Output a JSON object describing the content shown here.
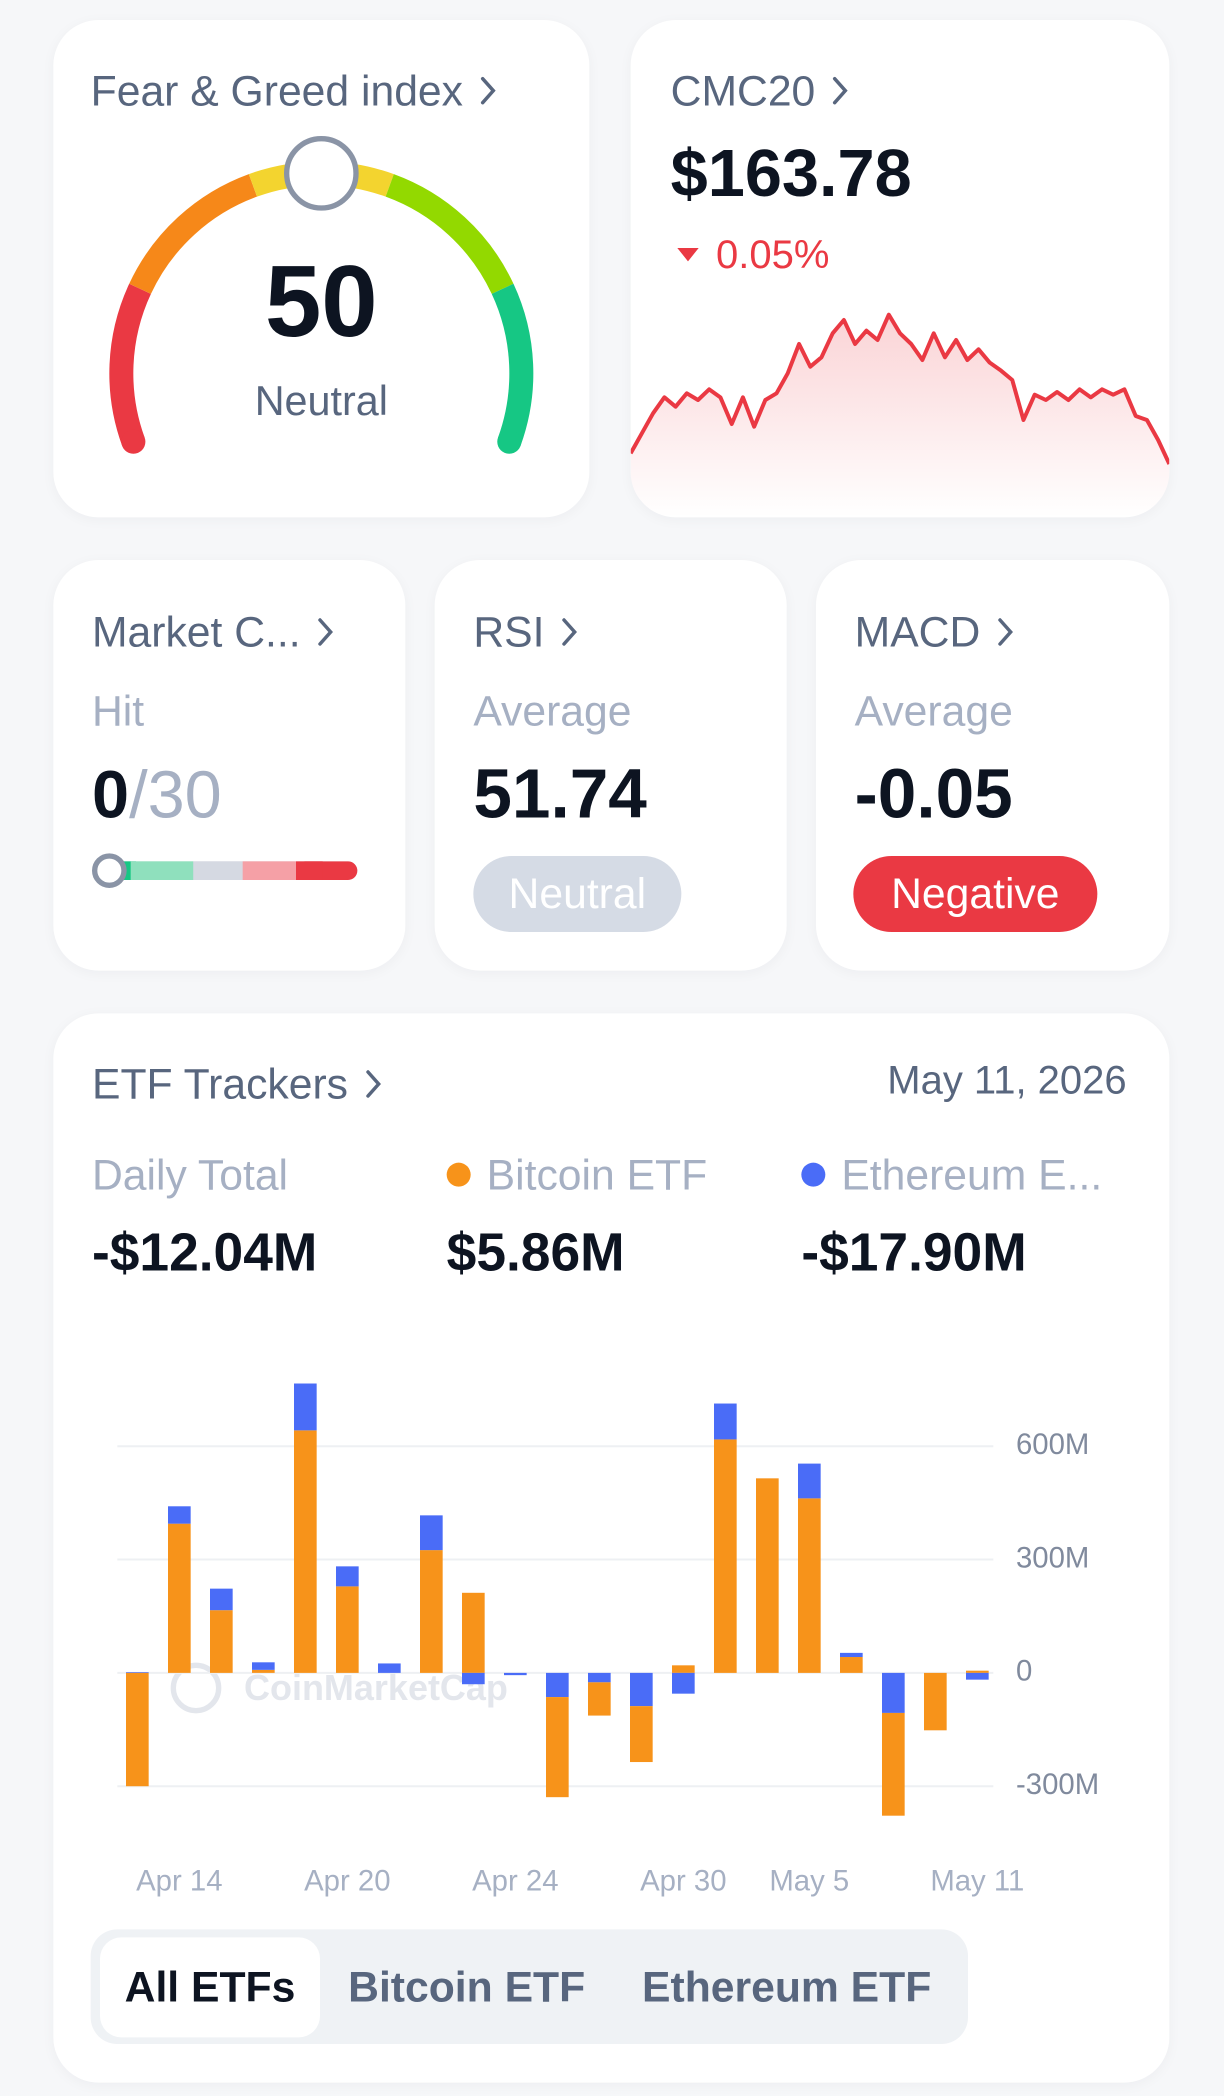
{
  "fear_greed": {
    "title": "Fear & Greed index",
    "value": 50,
    "label": "Neutral"
  },
  "cmc20": {
    "title": "CMC20",
    "price": "$163.78",
    "change": "0.05%"
  },
  "market_cycle": {
    "title": "Market C...",
    "subtitle": "Hit",
    "hit": 0,
    "total": "/30"
  },
  "rsi": {
    "title": "RSI",
    "subtitle": "Average",
    "value": 51.74,
    "status": "Neutral"
  },
  "macd": {
    "title": "MACD",
    "subtitle": "Average",
    "value": -0.05,
    "status": "Negative"
  },
  "etf": {
    "title": "ETF Trackers",
    "date": "May 11, 2026",
    "daily_total_label": "Daily Total",
    "daily_total": "-$12.04M",
    "bitcoin_total": "$5.86M",
    "ethereum_total": "-$17.90M",
    "watermark": "CoinMarketCap",
    "tabs": [
      "All ETFs",
      "Bitcoin ETF",
      "Ethereum ETF"
    ]
  },
  "chart_data": [
    {
      "type": "line",
      "color": "#ea3943",
      "values": [
        20,
        35,
        50,
        62,
        55,
        65,
        60,
        68,
        62,
        42,
        62,
        40,
        60,
        65,
        80,
        102,
        85,
        92,
        110,
        120,
        102,
        112,
        105,
        124,
        110,
        102,
        90,
        110,
        92,
        105,
        90,
        98,
        88,
        82,
        75,
        45,
        64,
        60,
        66,
        60,
        68,
        62,
        68,
        64,
        68,
        48,
        45,
        30,
        12
      ]
    },
    {
      "type": "bar",
      "stacked": true,
      "categories": [
        null,
        "Apr 14",
        null,
        null,
        null,
        "Apr 20",
        null,
        null,
        null,
        "Apr 24",
        null,
        null,
        null,
        "Apr 30",
        null,
        null,
        "May 5",
        null,
        null,
        null,
        "May 11"
      ],
      "series": [
        {
          "name": "Bitcoin ETF",
          "color": "#f7931a",
          "values": [
            -300,
            395,
            166,
            8,
            642,
            229,
            0,
            325,
            212,
            0,
            -265,
            -88,
            -148,
            20,
            618,
            515,
            462,
            42,
            -272,
            -152,
            5.86
          ]
        },
        {
          "name": "Ethereum E...",
          "color": "#4a6cf7",
          "values": [
            2,
            46,
            57,
            20,
            124,
            53,
            25,
            92,
            -30,
            -6,
            -64,
            -25,
            -88,
            -55,
            95,
            0,
            92,
            11,
            -106,
            0,
            -17.9
          ]
        }
      ],
      "ylim": [
        -400,
        800
      ],
      "yticks": [
        {
          "value": -300,
          "label": "-300M"
        },
        0,
        {
          "value": 300,
          "label": "300M"
        },
        {
          "value": 600,
          "label": "600M"
        }
      ],
      "grid": true
    }
  ]
}
